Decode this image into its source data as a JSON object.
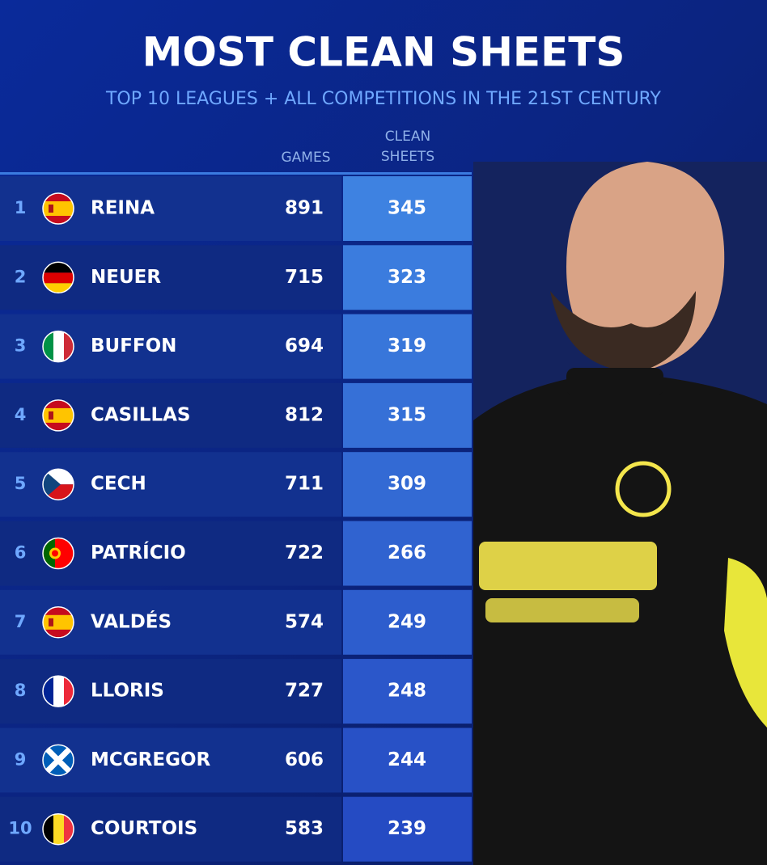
{
  "header": {
    "title": "MOST CLEAN SHEETS",
    "subtitle": "TOP 10 LEAGUES + ALL COMPETITIONS IN THE 21ST CENTURY"
  },
  "table": {
    "columns": [
      "GAMES",
      "CLEAN SHEETS"
    ],
    "rows": [
      [
        "1",
        "REINA",
        "891",
        "345"
      ],
      [
        "2",
        "NEUER",
        "715",
        "323"
      ],
      [
        "3",
        "BUFFON",
        "694",
        "319"
      ],
      [
        "4",
        "CASILLAS",
        "812",
        "315"
      ],
      [
        "5",
        "CECH",
        "711",
        "309"
      ],
      [
        "6",
        "PATRÍCIO",
        "722",
        "266"
      ],
      [
        "7",
        "VALDÉS",
        "574",
        "249"
      ],
      [
        "8",
        "LLORIS",
        "727",
        "248"
      ],
      [
        "9",
        "MCGREGOR",
        "606",
        "244"
      ],
      [
        "10",
        "COURTOIS",
        "583",
        "239"
      ]
    ]
  }
}
